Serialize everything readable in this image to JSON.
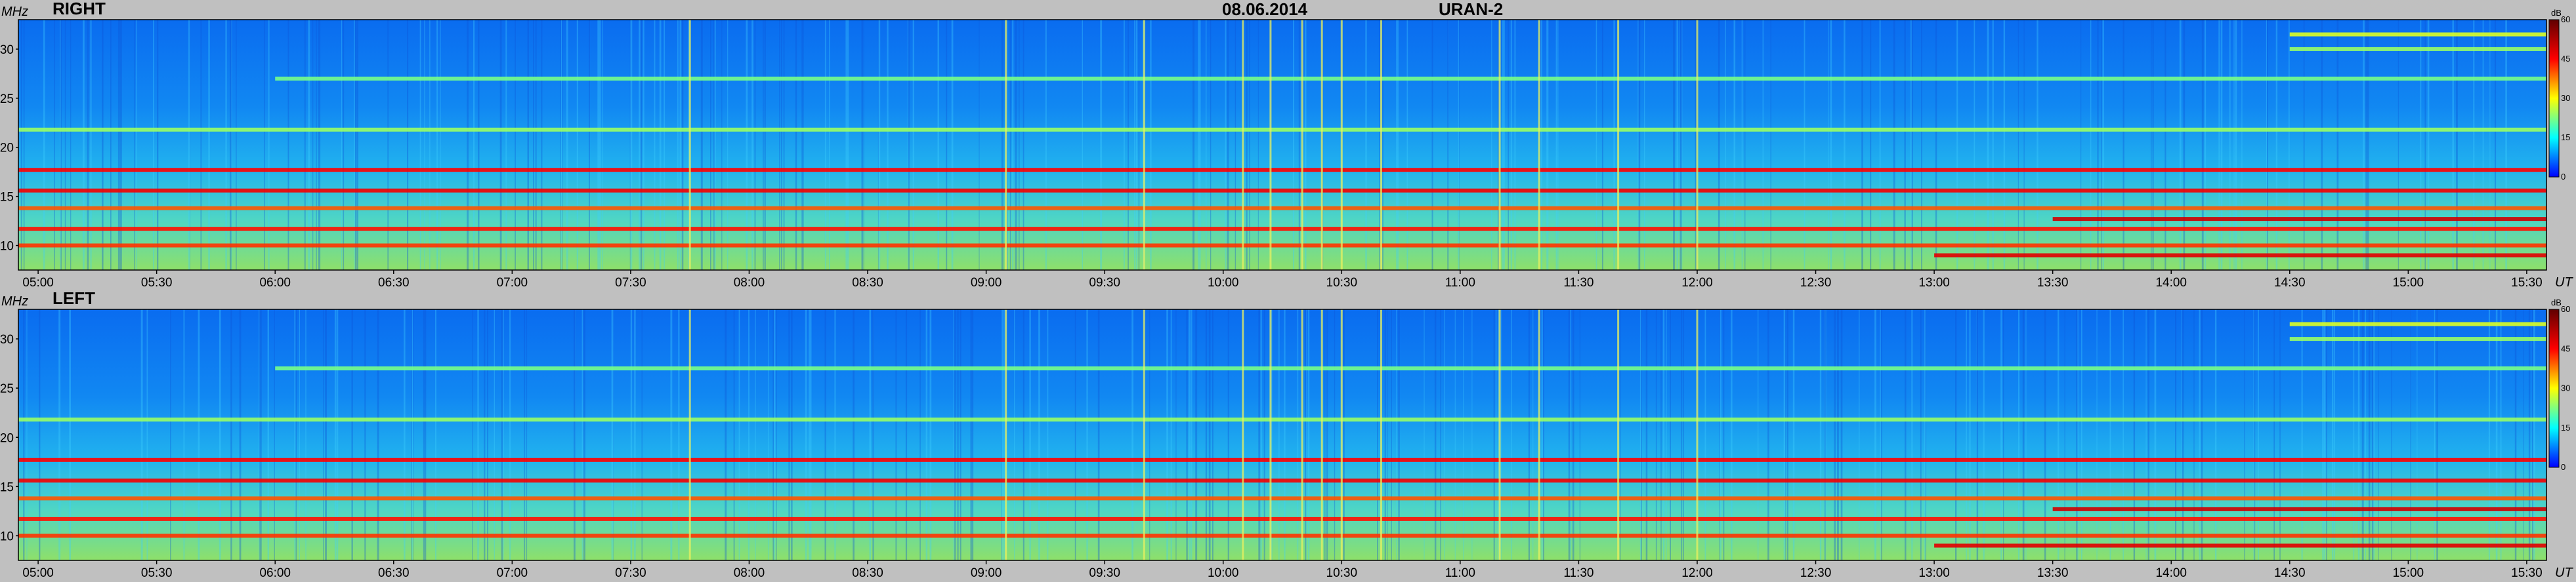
{
  "chart_data": {
    "type": "heatmap",
    "title": {
      "date": "08.06.2014",
      "instrument": "URAN-2"
    },
    "xlabel": "UT",
    "ylabel": "MHz",
    "x_ticks": [
      "05:00",
      "05:30",
      "06:00",
      "06:30",
      "07:00",
      "07:30",
      "08:00",
      "08:30",
      "09:00",
      "09:30",
      "10:00",
      "10:30",
      "11:00",
      "11:30",
      "12:00",
      "12:30",
      "13:00",
      "13:30",
      "14:00",
      "14:30",
      "15:00",
      "15:30"
    ],
    "y_ticks": [
      "10",
      "15",
      "20",
      "25",
      "30"
    ],
    "xlim": [
      "04:55",
      "15:35"
    ],
    "ylim": [
      7.5,
      33
    ],
    "colorbar": {
      "unit": "dB",
      "ticks": [
        "0",
        "15",
        "30",
        "45",
        "60"
      ],
      "range": [
        0,
        60
      ]
    },
    "panels": [
      {
        "label": "RIGHT",
        "bands": [
          {
            "freq": 9.0,
            "level": 48,
            "from": "13:00",
            "to": "15:35"
          },
          {
            "freq": 10.0,
            "level": 42,
            "from": "04:55",
            "to": "15:35"
          },
          {
            "freq": 11.7,
            "level": 44,
            "from": "04:55",
            "to": "15:35"
          },
          {
            "freq": 12.7,
            "level": 50,
            "from": "13:30",
            "to": "15:35"
          },
          {
            "freq": 13.8,
            "level": 40,
            "from": "04:55",
            "to": "15:35"
          },
          {
            "freq": 15.6,
            "level": 46,
            "from": "04:55",
            "to": "15:35"
          },
          {
            "freq": 17.7,
            "level": 45,
            "from": "04:55",
            "to": "15:35"
          },
          {
            "freq": 21.8,
            "level": 24,
            "from": "04:55",
            "to": "15:35"
          },
          {
            "freq": 27.0,
            "level": 22,
            "from": "06:00",
            "to": "15:35"
          },
          {
            "freq": 30.0,
            "level": 24,
            "from": "14:30",
            "to": "15:35"
          },
          {
            "freq": 31.5,
            "level": 28,
            "from": "14:30",
            "to": "15:35"
          }
        ],
        "bursts": [
          "07:45",
          "09:05",
          "09:40",
          "10:05",
          "10:12",
          "10:20",
          "10:25",
          "10:30",
          "10:40",
          "11:10",
          "11:20",
          "11:40",
          "12:00"
        ]
      },
      {
        "label": "LEFT",
        "bands": [
          {
            "freq": 9.0,
            "level": 48,
            "from": "13:00",
            "to": "15:35"
          },
          {
            "freq": 10.0,
            "level": 42,
            "from": "04:55",
            "to": "15:35"
          },
          {
            "freq": 11.7,
            "level": 44,
            "from": "04:55",
            "to": "15:35"
          },
          {
            "freq": 12.7,
            "level": 50,
            "from": "13:30",
            "to": "15:35"
          },
          {
            "freq": 13.8,
            "level": 40,
            "from": "04:55",
            "to": "15:35"
          },
          {
            "freq": 15.6,
            "level": 46,
            "from": "04:55",
            "to": "15:35"
          },
          {
            "freq": 17.7,
            "level": 45,
            "from": "04:55",
            "to": "15:35"
          },
          {
            "freq": 21.8,
            "level": 24,
            "from": "04:55",
            "to": "15:35"
          },
          {
            "freq": 27.0,
            "level": 22,
            "from": "06:00",
            "to": "15:35"
          },
          {
            "freq": 30.0,
            "level": 24,
            "from": "14:30",
            "to": "15:35"
          },
          {
            "freq": 31.5,
            "level": 28,
            "from": "14:30",
            "to": "15:35"
          }
        ],
        "bursts": [
          "07:45",
          "09:05",
          "09:40",
          "10:05",
          "10:12",
          "10:20",
          "10:25",
          "10:30",
          "10:40",
          "11:10",
          "11:20",
          "11:40",
          "12:00"
        ]
      }
    ]
  }
}
